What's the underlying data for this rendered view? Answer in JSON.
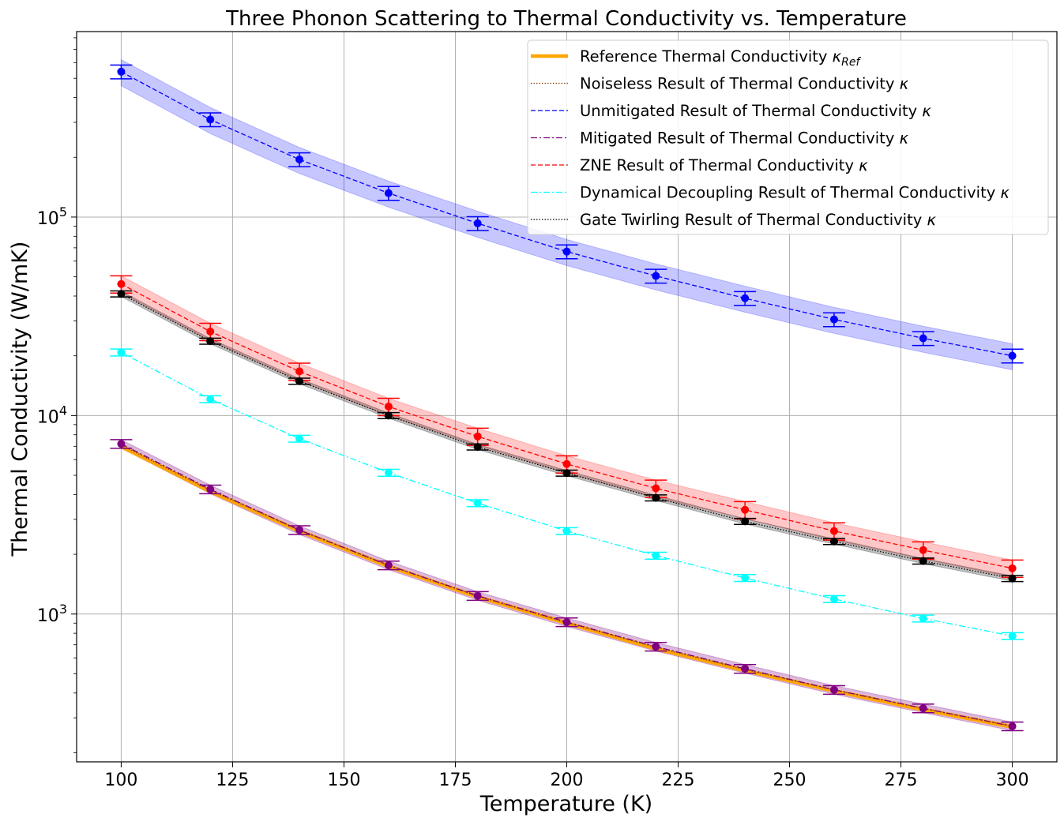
{
  "chart_data": {
    "type": "line",
    "title": "Three Phonon Scattering to Thermal Conductivity vs. Temperature",
    "xlabel": "Temperature (K)",
    "ylabel": "Thermal Conductivity (W/mK)",
    "xlim": [
      90,
      310
    ],
    "ylim": [
      180,
      860000
    ],
    "yscale": "log",
    "grid": true,
    "legend_position": "top-right",
    "x_ticks": [
      100,
      125,
      150,
      175,
      200,
      225,
      250,
      275,
      300
    ],
    "y_tick_labels": [
      {
        "value": 1000,
        "base": "10",
        "exp": "3"
      },
      {
        "value": 10000,
        "base": "10",
        "exp": "4"
      },
      {
        "value": 100000,
        "base": "10",
        "exp": "5"
      }
    ],
    "x": [
      100,
      120,
      140,
      160,
      180,
      200,
      220,
      240,
      260,
      280,
      300
    ],
    "legend": [
      {
        "text": "Reference Thermal Conductivity ",
        "sym": "κ",
        "sub": "Ref",
        "color": "#ffa500",
        "dash": "",
        "width": 4.5
      },
      {
        "text": "Noiseless Result of Thermal Conductivity ",
        "sym": "κ",
        "sub": "",
        "color": "#8b4513",
        "dash": "1.5,2",
        "width": 1.3
      },
      {
        "text": "Unmitigated Result of Thermal Conductivity ",
        "sym": "κ",
        "sub": "",
        "color": "#0000ff",
        "dash": "6,3",
        "width": 1.3
      },
      {
        "text": "Mitigated Result of Thermal Conductivity ",
        "sym": "κ",
        "sub": "",
        "color": "#800080",
        "dash": "8,3,2,3",
        "width": 1.3
      },
      {
        "text": "ZNE Result of Thermal Conductivity ",
        "sym": "κ",
        "sub": "",
        "color": "#ff0000",
        "dash": "6,3",
        "width": 1.3
      },
      {
        "text": "Dynamical Decoupling Result of Thermal Conductivity ",
        "sym": "κ",
        "sub": "",
        "color": "#00ffff",
        "dash": "8,3,2,3",
        "width": 1.3
      },
      {
        "text": "Gate Twirling Result of Thermal Conductivity ",
        "sym": "κ",
        "sub": "",
        "color": "#000000",
        "dash": "1.5,2",
        "width": 1.3
      }
    ],
    "series": [
      {
        "color": "#ffa500",
        "style": "reference",
        "values": [
          7000,
          4150,
          2620,
          1740,
          1220,
          900,
          670,
          520,
          410,
          330,
          270
        ]
      },
      {
        "color": "#8b4513",
        "style": "line",
        "dash": "1.5,2",
        "values": [
          7100,
          4200,
          2650,
          1760,
          1230,
          905,
          680,
          525,
          415,
          335,
          272
        ]
      },
      {
        "color": "#0000ff",
        "style": "points",
        "dash": "6,3",
        "values": [
          540000,
          310000,
          195000,
          132000,
          93000,
          67000,
          50500,
          39000,
          30500,
          24500,
          20000
        ],
        "err": 0.08,
        "band": 0.15,
        "band_color": "#0000ff",
        "band_opacity": 0.22
      },
      {
        "color": "#800080",
        "style": "points",
        "dash": "8,3,2,3",
        "values": [
          7200,
          4250,
          2650,
          1760,
          1235,
          910,
          685,
          530,
          415,
          335,
          272
        ],
        "err": 0.05,
        "band": 0.05,
        "band_color": "#800080",
        "band_opacity": 0.28
      },
      {
        "color": "#ff0000",
        "style": "points",
        "dash": "6,3",
        "values": [
          46000,
          26500,
          16700,
          11100,
          7850,
          5700,
          4300,
          3350,
          2620,
          2100,
          1700
        ],
        "err": 0.1,
        "band": 0.1,
        "band_color": "#ff0000",
        "band_opacity": 0.22
      },
      {
        "color": "#00ffff",
        "style": "points",
        "dash": "8,3,2,3",
        "values": [
          20800,
          12100,
          7650,
          5150,
          3620,
          2620,
          1970,
          1520,
          1190,
          950,
          775
        ],
        "err": 0.04,
        "band": 0,
        "band_color": "#00ffff",
        "band_opacity": 0
      },
      {
        "color": "#000000",
        "style": "points",
        "dash": "1.5,2",
        "values": [
          41000,
          23700,
          14900,
          10000,
          6950,
          5130,
          3850,
          2930,
          2320,
          1850,
          1510
        ],
        "err": 0.035,
        "band": 0.03,
        "band_color": "#000000",
        "band_opacity": 0.25
      }
    ]
  }
}
